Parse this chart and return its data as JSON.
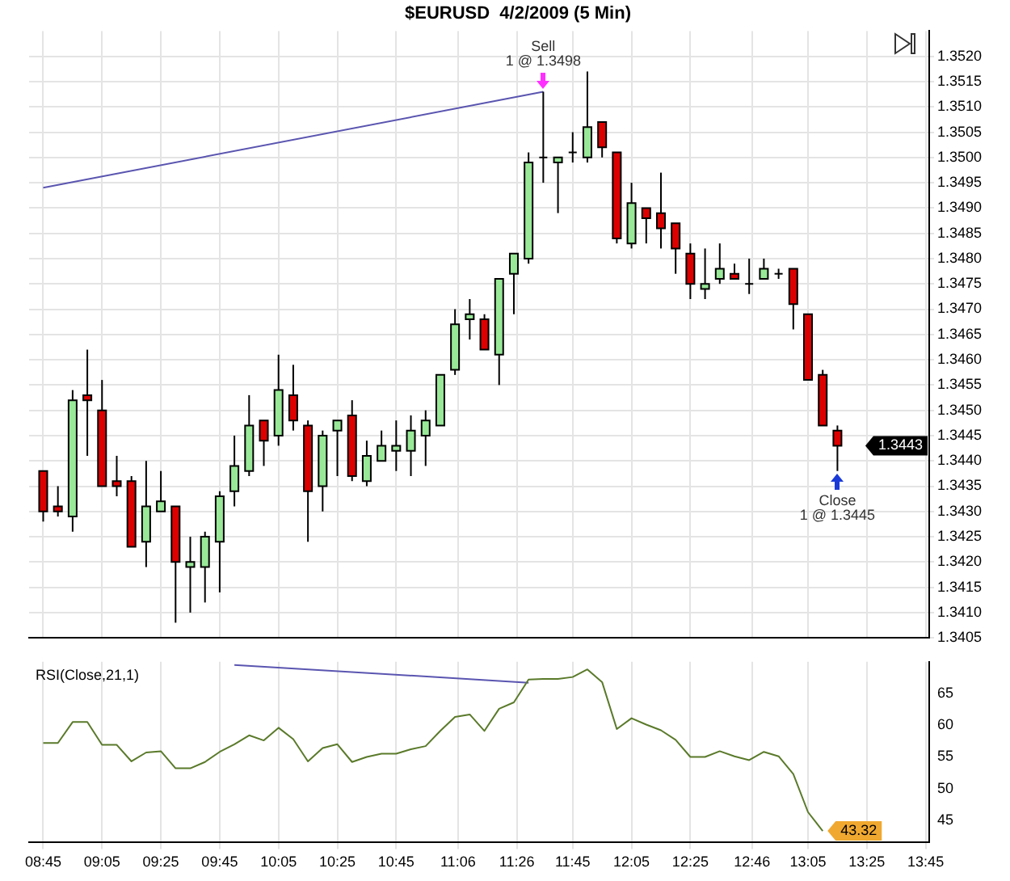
{
  "chart_data": [
    {
      "type": "candlestick",
      "title": "$EURUSD  4/2/2009 (5 Min)",
      "x": [
        8.75,
        8.8333,
        8.9167,
        9.0,
        9.0833,
        9.1667,
        9.25,
        9.3333,
        9.4167,
        9.5,
        9.5833,
        9.6667,
        9.75,
        9.8333,
        9.9167,
        10.0,
        10.0833,
        10.1667,
        10.25,
        10.3333,
        10.4167,
        10.5,
        10.5833,
        10.6667,
        10.75,
        10.8333,
        10.9167,
        11.0,
        11.0833,
        11.1667,
        11.25,
        11.3333,
        11.4167,
        11.5,
        11.5833,
        11.6667,
        11.75,
        11.8333,
        11.9167,
        12.0,
        12.0833,
        12.1667,
        12.25,
        12.3333,
        12.4167,
        12.5,
        12.5833,
        12.6667,
        12.75,
        12.8333,
        12.9167,
        13.0,
        13.0833,
        13.1667,
        13.25
      ],
      "ohlc": [
        [
          1.3438,
          1.3438,
          1.3428,
          1.343
        ],
        [
          1.3431,
          1.3435,
          1.3429,
          1.343
        ],
        [
          1.3429,
          1.3454,
          1.3426,
          1.3452
        ],
        [
          1.3453,
          1.3462,
          1.3441,
          1.3452
        ],
        [
          1.345,
          1.3456,
          1.3435,
          1.3435
        ],
        [
          1.3436,
          1.3441,
          1.3433,
          1.3435
        ],
        [
          1.3436,
          1.3437,
          1.3423,
          1.3423
        ],
        [
          1.3424,
          1.344,
          1.3419,
          1.3431
        ],
        [
          1.343,
          1.3438,
          1.343,
          1.3432
        ],
        [
          1.3431,
          1.3431,
          1.3408,
          1.342
        ],
        [
          1.3419,
          1.3425,
          1.341,
          1.342
        ],
        [
          1.3419,
          1.3426,
          1.3412,
          1.3425
        ],
        [
          1.3424,
          1.3434,
          1.3414,
          1.3433
        ],
        [
          1.3434,
          1.3445,
          1.3431,
          1.3439
        ],
        [
          1.3438,
          1.3453,
          1.3437,
          1.3447
        ],
        [
          1.3448,
          1.3448,
          1.3439,
          1.3444
        ],
        [
          1.3445,
          1.3461,
          1.3443,
          1.3454
        ],
        [
          1.3453,
          1.3459,
          1.3446,
          1.3448
        ],
        [
          1.3447,
          1.3448,
          1.3424,
          1.3434
        ],
        [
          1.3435,
          1.3446,
          1.343,
          1.3445
        ],
        [
          1.3446,
          1.3448,
          1.3437,
          1.3448
        ],
        [
          1.3449,
          1.3452,
          1.3436,
          1.3437
        ],
        [
          1.3436,
          1.3444,
          1.3435,
          1.3441
        ],
        [
          1.344,
          1.3446,
          1.344,
          1.3443
        ],
        [
          1.3442,
          1.3448,
          1.3438,
          1.3443
        ],
        [
          1.3442,
          1.3449,
          1.3437,
          1.3446
        ],
        [
          1.3445,
          1.345,
          1.3439,
          1.3448
        ],
        [
          1.3447,
          1.3457,
          1.3447,
          1.3457
        ],
        [
          1.3458,
          1.347,
          1.3457,
          1.3467
        ],
        [
          1.3468,
          1.3472,
          1.3464,
          1.3469
        ],
        [
          1.3468,
          1.3469,
          1.3462,
          1.3462
        ],
        [
          1.3461,
          1.3476,
          1.3455,
          1.3476
        ],
        [
          1.3477,
          1.3481,
          1.3469,
          1.3481
        ],
        [
          1.348,
          1.3501,
          1.3479,
          1.3499
        ],
        [
          1.35,
          1.3513,
          1.3495,
          1.35
        ],
        [
          1.3499,
          1.35,
          1.3489,
          1.35
        ],
        [
          1.3501,
          1.3505,
          1.3499,
          1.3501
        ],
        [
          1.35,
          1.3517,
          1.3499,
          1.3506
        ],
        [
          1.3507,
          1.3507,
          1.35,
          1.3502
        ],
        [
          1.3501,
          1.3501,
          1.3483,
          1.3484
        ],
        [
          1.3483,
          1.3495,
          1.3482,
          1.3491
        ],
        [
          1.349,
          1.349,
          1.3483,
          1.3488
        ],
        [
          1.3489,
          1.3497,
          1.3482,
          1.3486
        ],
        [
          1.3487,
          1.3487,
          1.3477,
          1.3482
        ],
        [
          1.3481,
          1.3483,
          1.3472,
          1.3475
        ],
        [
          1.3474,
          1.3482,
          1.3472,
          1.3475
        ],
        [
          1.3476,
          1.3483,
          1.3475,
          1.3478
        ],
        [
          1.3477,
          1.3479,
          1.3476,
          1.3476
        ],
        [
          1.3475,
          1.348,
          1.3473,
          1.3475
        ],
        [
          1.3476,
          1.348,
          1.3476,
          1.3478
        ],
        [
          1.3477,
          1.3478,
          1.3476,
          1.3477
        ],
        [
          1.3478,
          1.3478,
          1.3466,
          1.3471
        ],
        [
          1.3469,
          1.3469,
          1.3456,
          1.3456
        ],
        [
          1.3457,
          1.3458,
          1.3447,
          1.3447
        ],
        [
          1.3446,
          1.3447,
          1.3438,
          1.3443
        ]
      ],
      "series": [
        {
          "type": "line",
          "color": "#5a55b0",
          "x": [
            8.75,
            11.5833
          ],
          "values": [
            1.3494,
            1.3513
          ]
        }
      ],
      "value_labels": [
        null,
        null,
        null,
        null,
        null,
        null,
        null,
        null,
        null,
        null,
        null,
        null,
        null,
        null,
        null,
        null,
        null,
        null,
        null,
        null,
        null,
        null,
        null,
        null,
        null,
        null,
        null,
        null,
        null,
        null,
        null,
        null,
        null,
        null,
        null,
        null,
        null,
        null,
        null,
        null,
        null,
        null,
        null,
        null,
        null,
        null,
        null,
        null,
        null,
        null,
        null,
        null,
        null,
        null,
        "1.3443"
      ],
      "xlim": [
        8.67,
        13.77
      ],
      "xticks": [
        {
          "value": 8.75,
          "label": null
        },
        {
          "value": 9.0833,
          "label": null
        },
        {
          "value": 9.4167,
          "label": null
        },
        {
          "value": 9.75,
          "label": null
        },
        {
          "value": 10.0833,
          "label": null
        },
        {
          "value": 10.4167,
          "label": null
        },
        {
          "value": 10.75,
          "label": null
        },
        {
          "value": 11.1,
          "label": null
        },
        {
          "value": 11.4333,
          "label": null
        },
        {
          "value": 11.75,
          "label": null
        },
        {
          "value": 12.0833,
          "label": null
        },
        {
          "value": 12.4167,
          "label": null
        },
        {
          "value": 12.7667,
          "label": null
        },
        {
          "value": 13.0833,
          "label": null
        },
        {
          "value": 13.4167,
          "label": null
        },
        {
          "value": 13.75,
          "label": null
        }
      ],
      "ylim": [
        1.3405,
        1.3525
      ],
      "yticks": [
        1.3405,
        {
          "value": 1.341,
          "label": "1.3410"
        },
        1.3415,
        {
          "value": 1.342,
          "label": "1.3420"
        },
        1.3425,
        {
          "value": 1.343,
          "label": "1.3430"
        },
        1.3435,
        {
          "value": 1.344,
          "label": "1.3440"
        },
        1.3445,
        {
          "value": 1.345,
          "label": "1.3450"
        },
        1.3455,
        {
          "value": 1.346,
          "label": "1.3460"
        },
        1.3465,
        {
          "value": 1.347,
          "label": "1.3470"
        },
        1.3475,
        {
          "value": 1.348,
          "label": "1.3480"
        },
        1.3485,
        {
          "value": 1.349,
          "label": "1.3490"
        },
        1.3495,
        {
          "value": 1.35,
          "label": "1.3500"
        },
        1.3505,
        {
          "value": 1.351,
          "label": "1.3510"
        },
        1.3515,
        {
          "value": 1.352,
          "label": "1.3520"
        }
      ],
      "grid": true,
      "tick_labels": "y",
      "annotations": [
        {
          "text": "Sell\n1 @ 1.3498",
          "x": 11.5833,
          "y": 1.3513
        },
        {
          "text": "Close\n1 @ 1.3445",
          "x": 13.25,
          "y": 1.3438
        }
      ]
    },
    {
      "type": "line",
      "x": [
        8.75,
        8.8333,
        8.9167,
        9.0,
        9.0833,
        9.1667,
        9.25,
        9.3333,
        9.4167,
        9.5,
        9.5833,
        9.6667,
        9.75,
        9.8333,
        9.9167,
        10.0,
        10.0833,
        10.1667,
        10.25,
        10.3333,
        10.4167,
        10.5,
        10.5833,
        10.6667,
        10.75,
        10.8333,
        10.9167,
        11.0,
        11.0833,
        11.1667,
        11.25,
        11.3333,
        11.4167,
        11.5,
        11.5833,
        11.6667,
        11.75,
        11.8333,
        11.9167,
        12.0,
        12.0833,
        12.1667,
        12.25,
        12.3333,
        12.4167,
        12.5,
        12.5833,
        12.6667,
        12.75,
        12.8333,
        12.9167,
        13.0,
        13.0833,
        13.1667
      ],
      "series": [
        {
          "color": "#5a7a2a",
          "value_labels": [
            null,
            null,
            null,
            null,
            null,
            null,
            null,
            null,
            null,
            null,
            null,
            null,
            null,
            null,
            null,
            null,
            null,
            null,
            null,
            null,
            null,
            null,
            null,
            null,
            null,
            null,
            null,
            null,
            null,
            null,
            null,
            null,
            null,
            null,
            null,
            null,
            null,
            null,
            null,
            null,
            null,
            null,
            null,
            null,
            null,
            null,
            null,
            null,
            null,
            null,
            null,
            null,
            null,
            "43.32"
          ],
          "values": [
            57.2,
            57.2,
            60.5,
            60.5,
            56.9,
            56.9,
            54.3,
            55.7,
            55.9,
            53.2,
            53.2,
            54.2,
            55.8,
            57.0,
            58.4,
            57.6,
            59.6,
            57.8,
            54.3,
            56.4,
            57.0,
            54.2,
            55.0,
            55.5,
            55.5,
            56.2,
            56.7,
            59.1,
            61.3,
            61.7,
            59.1,
            62.6,
            63.6,
            67.2,
            67.3,
            67.3,
            67.6,
            68.8,
            66.8,
            59.4,
            61.1,
            60.1,
            59.2,
            57.7,
            55.0,
            55.0,
            55.9,
            55.1,
            54.5,
            55.8,
            55.1,
            52.3,
            46.3,
            43.32
          ]
        },
        {
          "color": "#5a55b0",
          "x": [
            9.8333,
            11.5
          ],
          "values": [
            69.5,
            66.7
          ]
        }
      ],
      "xlim": [
        8.67,
        13.77
      ],
      "xticks": [
        {
          "value": 8.75,
          "label": "08:45"
        },
        {
          "value": 9.0833,
          "label": "09:05"
        },
        {
          "value": 9.4167,
          "label": "09:25"
        },
        {
          "value": 9.75,
          "label": "09:45"
        },
        {
          "value": 10.0833,
          "label": "10:05"
        },
        {
          "value": 10.4167,
          "label": "10:25"
        },
        {
          "value": 10.75,
          "label": "10:45"
        },
        {
          "value": 11.1,
          "label": "11:06"
        },
        {
          "value": 11.4333,
          "label": "11:26"
        },
        {
          "value": 11.75,
          "label": "11:45"
        },
        {
          "value": 12.0833,
          "label": "12:05"
        },
        {
          "value": 12.4167,
          "label": "12:25"
        },
        {
          "value": 12.7667,
          "label": "12:46"
        },
        {
          "value": 13.0833,
          "label": "13:05"
        },
        {
          "value": 13.4167,
          "label": "13:25"
        },
        {
          "value": 13.75,
          "label": "13:45"
        }
      ],
      "ylim": [
        41.5,
        70
      ],
      "yticks": [
        45,
        50,
        55,
        60,
        65
      ],
      "grid": "x",
      "annotations": [
        "RSI(Close,21,1)"
      ]
    }
  ]
}
